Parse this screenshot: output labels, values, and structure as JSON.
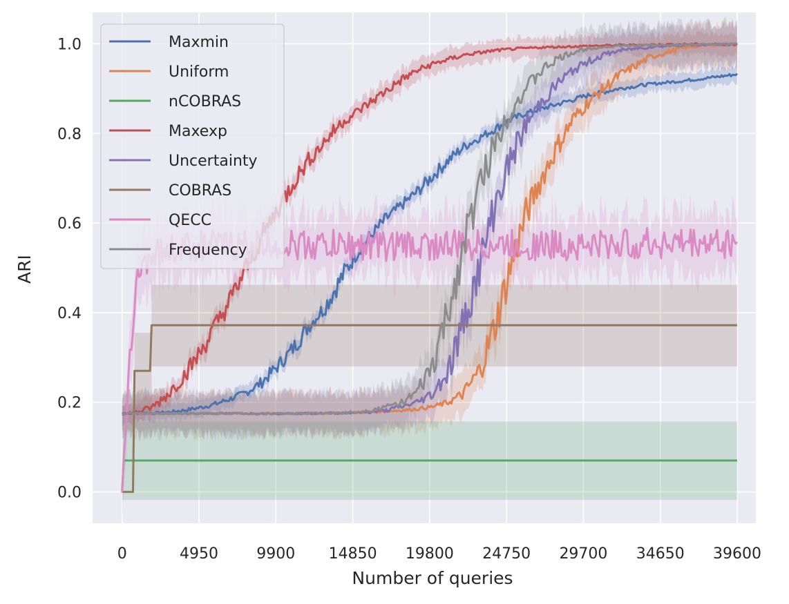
{
  "chart_data": {
    "type": "line",
    "title": "",
    "xlabel": "Number of queries",
    "ylabel": "ARI",
    "xlim": [
      -1900,
      40800
    ],
    "ylim": [
      -0.07,
      1.07
    ],
    "xticks": [
      0,
      4950,
      9900,
      14850,
      19800,
      24750,
      29700,
      34650,
      39600
    ],
    "yticks": [
      0.0,
      0.2,
      0.4,
      0.6,
      0.8,
      1.0
    ],
    "ytick_labels": [
      "0.0",
      "0.2",
      "0.4",
      "0.6",
      "0.8",
      "1.0"
    ],
    "grid": true,
    "background": "#eaeaf2",
    "legend_position": "upper-left",
    "series": [
      {
        "name": "Maxmin",
        "color": "#4c72b0",
        "x": [
          0,
          1000,
          2000,
          3000,
          4000,
          5000,
          6000,
          7000,
          8000,
          9000,
          10000,
          11000,
          12000,
          13000,
          14000,
          15000,
          16000,
          17000,
          18000,
          19000,
          20000,
          21000,
          22000,
          23000,
          24000,
          25000,
          26000,
          27000,
          28000,
          29000,
          30000,
          32000,
          34000,
          36000,
          38000,
          39600
        ],
        "y": [
          0.175,
          0.176,
          0.176,
          0.178,
          0.182,
          0.188,
          0.196,
          0.208,
          0.222,
          0.245,
          0.28,
          0.32,
          0.37,
          0.41,
          0.47,
          0.53,
          0.57,
          0.61,
          0.64,
          0.67,
          0.705,
          0.74,
          0.77,
          0.79,
          0.81,
          0.83,
          0.845,
          0.855,
          0.865,
          0.875,
          0.885,
          0.9,
          0.91,
          0.917,
          0.925,
          0.932
        ],
        "band": 0.012
      },
      {
        "name": "Uniform",
        "color": "#dd8452",
        "x": [
          0,
          2000,
          4000,
          6000,
          8000,
          10000,
          12000,
          14000,
          16000,
          18000,
          19000,
          20000,
          21000,
          22000,
          23000,
          24000,
          25000,
          26000,
          27000,
          28000,
          29000,
          30000,
          31000,
          32000,
          33000,
          34000,
          35000,
          36000,
          37000,
          38000,
          39600
        ],
        "y": [
          0.175,
          0.175,
          0.175,
          0.175,
          0.175,
          0.175,
          0.175,
          0.176,
          0.178,
          0.182,
          0.185,
          0.19,
          0.2,
          0.22,
          0.27,
          0.37,
          0.5,
          0.62,
          0.7,
          0.77,
          0.83,
          0.87,
          0.9,
          0.93,
          0.95,
          0.97,
          0.98,
          0.99,
          0.995,
          0.997,
          0.998
        ],
        "band": 0.03
      },
      {
        "name": "nCOBRAS",
        "color": "#55a868",
        "x": [
          0,
          100,
          200,
          39600
        ],
        "y": [
          0.0,
          0.07,
          0.07,
          0.07
        ],
        "band_lower": -0.018,
        "band_upper": 0.157
      },
      {
        "name": "Maxexp",
        "color": "#c44e52",
        "x": [
          0,
          1000,
          2000,
          3000,
          4000,
          5000,
          6000,
          7000,
          8000,
          9000,
          10000,
          11000,
          12000,
          13000,
          14000,
          15000,
          16000,
          17000,
          18000,
          19000,
          20000,
          21000,
          22000,
          23000,
          24000,
          25000,
          26000,
          27000,
          28000,
          29000,
          30000,
          32000,
          34000,
          36000,
          39600
        ],
        "y": [
          0.175,
          0.178,
          0.19,
          0.22,
          0.26,
          0.31,
          0.37,
          0.43,
          0.5,
          0.57,
          0.63,
          0.69,
          0.74,
          0.78,
          0.82,
          0.845,
          0.87,
          0.895,
          0.92,
          0.94,
          0.955,
          0.965,
          0.975,
          0.98,
          0.985,
          0.988,
          0.99,
          0.992,
          0.993,
          0.994,
          0.995,
          0.997,
          0.998,
          0.999,
          0.999
        ],
        "band": 0.015
      },
      {
        "name": "Uncertainty",
        "color": "#8172b3",
        "x": [
          0,
          2000,
          4000,
          6000,
          8000,
          10000,
          12000,
          14000,
          16000,
          17000,
          18000,
          19000,
          20000,
          21000,
          22000,
          23000,
          24000,
          25000,
          26000,
          27000,
          28000,
          29000,
          30000,
          31000,
          32000,
          34000,
          36000,
          38000,
          39600
        ],
        "y": [
          0.175,
          0.175,
          0.175,
          0.175,
          0.175,
          0.175,
          0.175,
          0.176,
          0.178,
          0.182,
          0.19,
          0.2,
          0.22,
          0.27,
          0.38,
          0.5,
          0.64,
          0.74,
          0.82,
          0.87,
          0.91,
          0.94,
          0.96,
          0.975,
          0.985,
          0.993,
          0.997,
          0.998,
          0.999
        ],
        "band": 0.03
      },
      {
        "name": "COBRAS",
        "color": "#937860",
        "x": [
          0,
          700,
          800,
          1800,
          1900,
          39600
        ],
        "y": [
          0.0,
          0.0,
          0.27,
          0.27,
          0.372,
          0.372
        ],
        "band_lower": 0.28,
        "band_upper": 0.462,
        "band_start": 1900
      },
      {
        "name": "QECC",
        "color": "#da8bc3",
        "x": [
          0,
          200,
          500,
          800,
          1000,
          1500,
          2000,
          3000,
          5000,
          10000,
          15000,
          20000,
          25000,
          30000,
          35000,
          39600
        ],
        "y": [
          0.0,
          0.1,
          0.3,
          0.42,
          0.48,
          0.52,
          0.53,
          0.54,
          0.55,
          0.55,
          0.55,
          0.55,
          0.55,
          0.55,
          0.555,
          0.555
        ],
        "band": 0.045,
        "noisy": true
      },
      {
        "name": "Frequency",
        "color": "#8c8c8c",
        "x": [
          0,
          2000,
          4000,
          6000,
          8000,
          10000,
          12000,
          14000,
          15000,
          16000,
          17000,
          18000,
          19000,
          20000,
          21000,
          22000,
          23000,
          24000,
          25000,
          26000,
          27000,
          28000,
          29000,
          30000,
          32000,
          34000,
          36000,
          39600
        ],
        "y": [
          0.175,
          0.175,
          0.175,
          0.175,
          0.175,
          0.175,
          0.175,
          0.176,
          0.178,
          0.182,
          0.19,
          0.2,
          0.22,
          0.28,
          0.4,
          0.55,
          0.68,
          0.78,
          0.85,
          0.9,
          0.94,
          0.965,
          0.98,
          0.99,
          0.995,
          0.997,
          0.998,
          0.999
        ],
        "band": 0.03
      }
    ]
  }
}
